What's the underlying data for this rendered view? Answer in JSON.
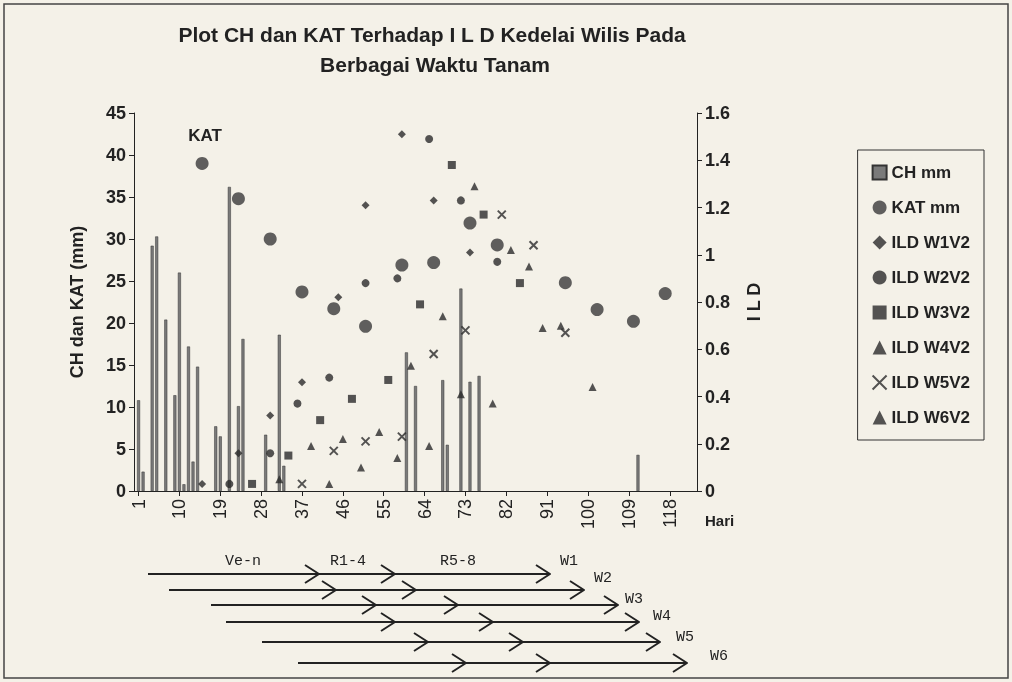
{
  "chart_data": {
    "type": "bar",
    "title": "Plot CH dan KAT Terhadap I L D Kedelai Wilis Pada Berbagai Waktu Tanam",
    "xlabel": "Hari",
    "ylabel": "CH dan KAT (mm)",
    "y2label": "I L D",
    "xlim": [
      0,
      124
    ],
    "xticks": [
      1,
      10,
      19,
      28,
      37,
      46,
      55,
      64,
      73,
      82,
      91,
      100,
      109,
      118
    ],
    "ylim": [
      0,
      45
    ],
    "yticks": [
      0,
      5,
      10,
      15,
      20,
      25,
      30,
      35,
      40,
      45
    ],
    "y2lim": [
      0,
      1.6
    ],
    "y2ticks": [
      0,
      0.2,
      0.4,
      0.6,
      0.8,
      1,
      1.2,
      1.4,
      1.6
    ],
    "legend": "right",
    "series": [
      {
        "name": "CH mm",
        "color": "#7a7a7a",
        "x": [
          1,
          2,
          4,
          5,
          7,
          9,
          10,
          11,
          12,
          13,
          14,
          18,
          19,
          21,
          23,
          24,
          29,
          32,
          33,
          60,
          62,
          68,
          69,
          72,
          74,
          76,
          111
        ],
        "values": [
          10.8,
          2.3,
          29.2,
          30.3,
          20.4,
          11.4,
          26,
          0.8,
          17.2,
          3.5,
          14.8,
          7.7,
          6.5,
          36.2,
          10.1,
          18.1,
          6.7,
          18.6,
          3,
          16.5,
          12.5,
          13.2,
          5.5,
          24.1,
          13,
          13.7,
          4.3
        ]
      },
      {
        "name": "KAT mm",
        "type": "scatter",
        "marker": "circle",
        "color": "#3a3a3a",
        "x": [
          15,
          23,
          30,
          37,
          44,
          51,
          59,
          66,
          74,
          80,
          95,
          102,
          110,
          117
        ],
        "values": [
          39,
          34.8,
          30,
          23.7,
          21.7,
          19.6,
          26.9,
          27.2,
          31.9,
          29.3,
          24.8,
          21.6,
          20.2,
          23.5
        ]
      },
      {
        "name": "ILD W1V2",
        "type": "scatter",
        "axis": "y2",
        "marker": "diamond",
        "color": "#2b2b2b",
        "x": [
          15,
          23,
          30,
          37,
          45,
          51,
          59,
          66,
          74
        ],
        "values": [
          0.03,
          0.16,
          0.32,
          0.46,
          0.82,
          1.21,
          1.51,
          1.23,
          1.01
        ]
      },
      {
        "name": "ILD W2V2",
        "type": "scatter",
        "axis": "y2",
        "marker": "circle",
        "color": "#2b2b2b",
        "x": [
          21,
          30,
          36,
          43,
          51,
          58,
          65,
          72,
          80
        ],
        "values": [
          0.03,
          0.16,
          0.37,
          0.48,
          0.88,
          0.9,
          1.49,
          1.23,
          0.97
        ]
      },
      {
        "name": "ILD W3V2",
        "type": "scatter",
        "axis": "y2",
        "marker": "square",
        "color": "#2b2b2b",
        "x": [
          26,
          34,
          41,
          48,
          56,
          63,
          70,
          77,
          85
        ],
        "values": [
          0.03,
          0.15,
          0.3,
          0.39,
          0.47,
          0.79,
          1.38,
          1.17,
          0.88
        ]
      },
      {
        "name": "ILD W4V2",
        "type": "scatter",
        "axis": "y2",
        "marker": "triangle",
        "color": "#2b2b2b",
        "x": [
          32,
          39,
          46,
          54,
          61,
          68,
          75,
          83,
          90
        ],
        "values": [
          0.05,
          0.19,
          0.22,
          0.25,
          0.53,
          0.74,
          1.29,
          1.02,
          0.69
        ]
      },
      {
        "name": "ILD W5V2",
        "type": "scatter",
        "axis": "y2",
        "marker": "cross",
        "color": "#2b2b2b",
        "x": [
          37,
          44,
          51,
          59,
          66,
          73,
          81,
          88,
          95
        ],
        "values": [
          0.03,
          0.17,
          0.21,
          0.23,
          0.58,
          0.68,
          1.17,
          1.04,
          0.67
        ]
      },
      {
        "name": "ILD W6V2",
        "type": "scatter",
        "axis": "y2",
        "marker": "triangle",
        "color": "#2b2b2b",
        "x": [
          43,
          50,
          58,
          65,
          72,
          79,
          87,
          94,
          101
        ],
        "values": [
          0.03,
          0.1,
          0.14,
          0.19,
          0.41,
          0.37,
          0.95,
          0.7,
          0.44
        ]
      }
    ],
    "annotations": [
      "KAT",
      "Ve-n",
      "R1-4",
      "R5-8",
      "W1",
      "W2",
      "W3",
      "W4",
      "W5",
      "W6"
    ]
  }
}
